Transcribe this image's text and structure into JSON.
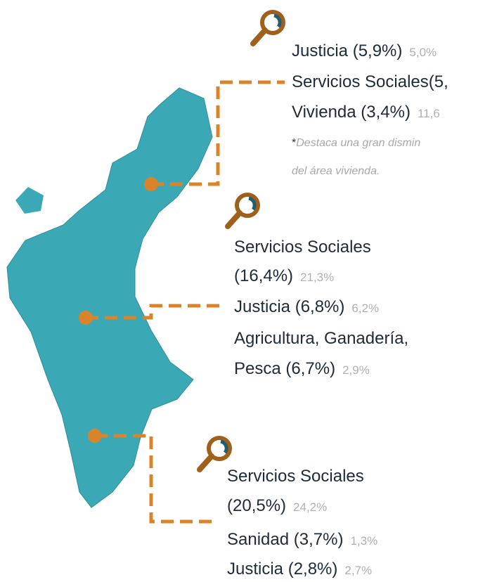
{
  "regions": [
    {
      "items": [
        {
          "label": "Justicia (5,9%)",
          "compare": "5,0%"
        },
        {
          "label": "Servicios Sociales(5,"
        },
        {
          "label": "Vivienda (3,4%)",
          "compare": "11,6"
        }
      ],
      "note": {
        "mark": "*",
        "lines": [
          "Destaca una gran dismin",
          "del área vivienda."
        ]
      }
    },
    {
      "items": [
        {
          "label": "Servicios Sociales"
        },
        {
          "label": "(16,4%)",
          "compare": "21,3%"
        },
        {
          "label": "Justicia (6,8%)",
          "compare": "6,2%"
        },
        {
          "label": "Agricultura, Ganadería,"
        },
        {
          "label": "Pesca (6,7%)",
          "compare": "2,9%"
        }
      ]
    },
    {
      "items": [
        {
          "label": "Servicios Sociales"
        },
        {
          "label": "(20,5%)",
          "compare": "24,2%"
        },
        {
          "label": "Sanidad (3,7%)",
          "compare": "1,3%"
        },
        {
          "label": "Justicia (2,8%)",
          "compare": "2,7%"
        }
      ]
    }
  ]
}
